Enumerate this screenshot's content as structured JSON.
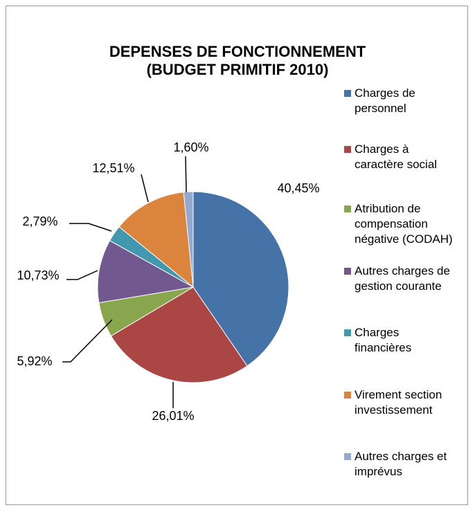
{
  "chart_data": {
    "type": "pie",
    "title": "DEPENSES DE FONCTIONNEMENT (BUDGET PRIMITIF 2010)",
    "categories": [
      "Charges de personnel",
      "Charges à caractère social",
      "Atribution de compensation négative (CODAH)",
      "Autres charges de gestion courante",
      "Charges financières",
      "Virement section investissement",
      "Autres charges et imprévus"
    ],
    "values": [
      40.45,
      26.01,
      5.92,
      10.73,
      2.79,
      12.51,
      1.6
    ],
    "value_labels": [
      "40,45%",
      "26,01%",
      "5,92%",
      "10,73%",
      "2,79%",
      "12,51%",
      "1,60%"
    ],
    "colors": [
      "#4572a7",
      "#aa4643",
      "#89a54e",
      "#71588f",
      "#4198af",
      "#db843d",
      "#93a9cf"
    ],
    "legend": "right"
  }
}
